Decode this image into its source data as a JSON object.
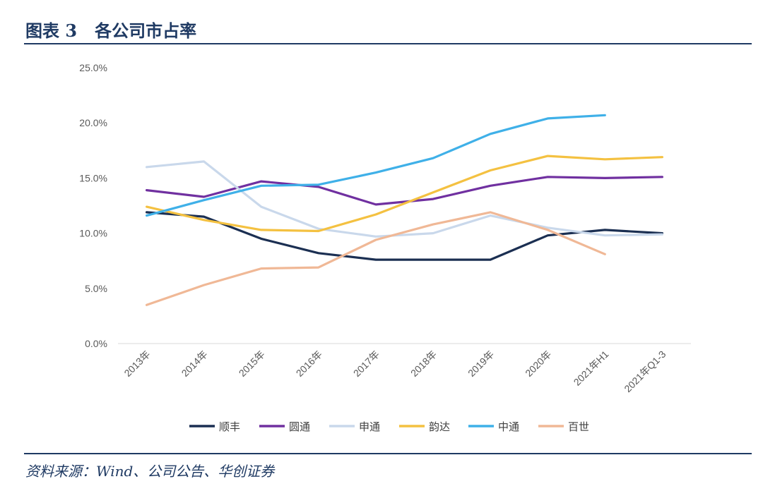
{
  "header": {
    "title": "图表 3   各公司市占率"
  },
  "footer": {
    "source": "资料来源：Wind、公司公告、华创证券"
  },
  "chart_data": {
    "type": "line",
    "title": "",
    "xlabel": "",
    "ylabel": "",
    "ylim": [
      0,
      25
    ],
    "y_ticks": [
      "0.0%",
      "5.0%",
      "10.0%",
      "15.0%",
      "20.0%",
      "25.0%"
    ],
    "categories": [
      "2013年",
      "2014年",
      "2015年",
      "2016年",
      "2017年",
      "2018年",
      "2019年",
      "2020年",
      "2021年H1",
      "2021年Q1-3"
    ],
    "grid": false,
    "legend_position": "bottom",
    "series": [
      {
        "name": "顺丰",
        "color": "#1b2f52",
        "values": [
          11.9,
          11.5,
          9.5,
          8.2,
          7.6,
          7.6,
          7.6,
          9.8,
          10.3,
          10.0
        ]
      },
      {
        "name": "圆通",
        "color": "#7030a0",
        "values": [
          13.9,
          13.3,
          14.7,
          14.2,
          12.6,
          13.1,
          14.3,
          15.1,
          15.0,
          15.1
        ]
      },
      {
        "name": "申通",
        "color": "#c9d8eb",
        "values": [
          16.0,
          16.5,
          12.4,
          10.4,
          9.7,
          10.0,
          11.6,
          10.5,
          9.8,
          9.9
        ]
      },
      {
        "name": "韵达",
        "color": "#f4c141",
        "values": [
          12.4,
          11.2,
          10.3,
          10.2,
          11.7,
          13.7,
          15.7,
          17.0,
          16.7,
          16.9
        ]
      },
      {
        "name": "中通",
        "color": "#3fb0e8",
        "values": [
          11.6,
          13.0,
          14.3,
          14.4,
          15.5,
          16.8,
          19.0,
          20.4,
          20.7,
          null
        ]
      },
      {
        "name": "百世",
        "color": "#f0b896",
        "values": [
          3.5,
          5.3,
          6.8,
          6.9,
          9.4,
          10.8,
          11.9,
          10.3,
          8.1,
          null
        ]
      }
    ]
  }
}
